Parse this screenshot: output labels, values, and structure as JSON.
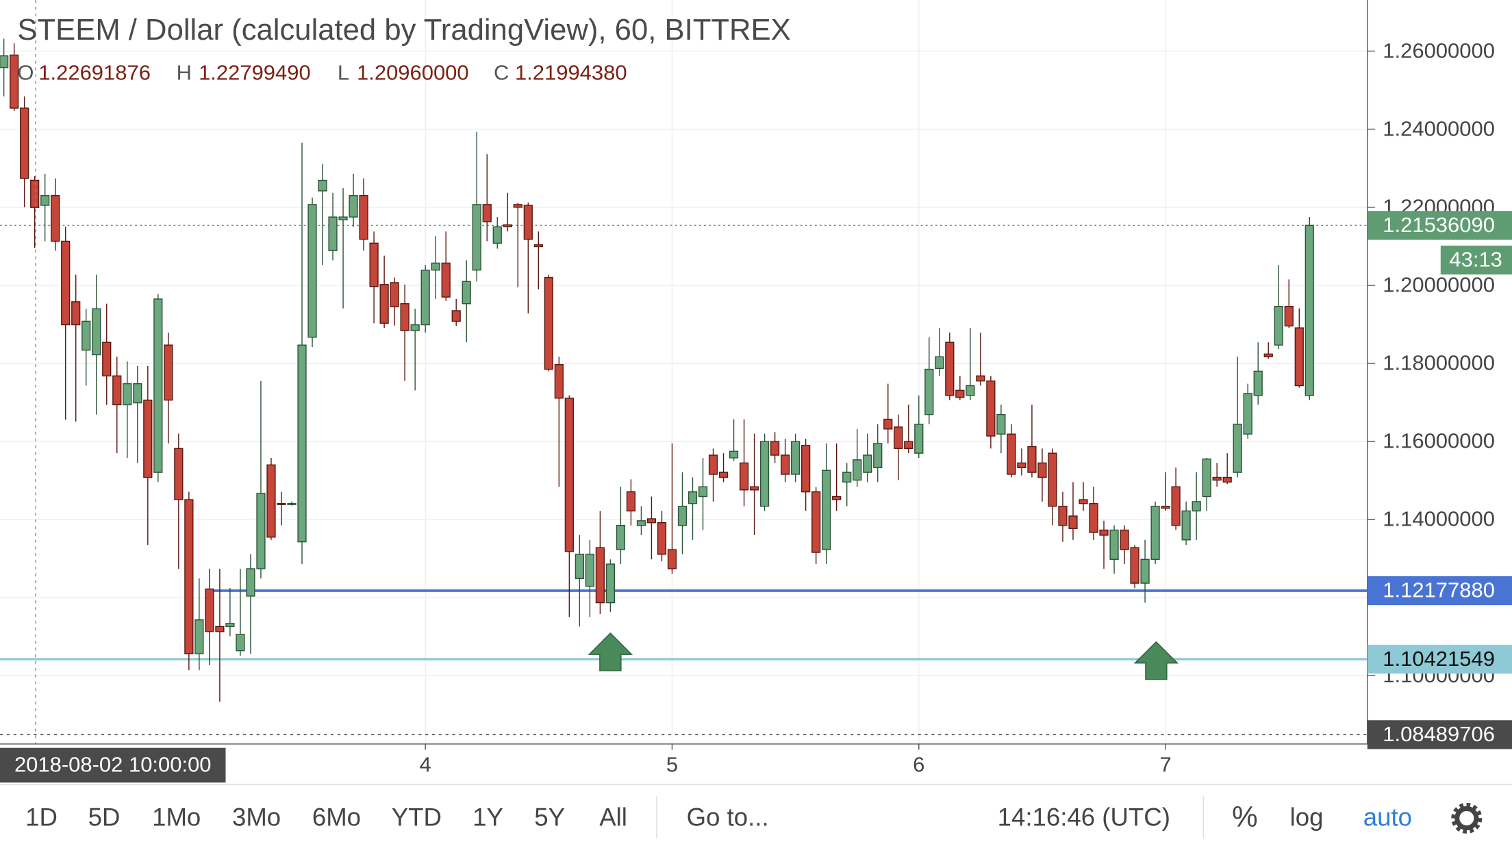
{
  "chart_data": {
    "type": "candlestick",
    "title": "STEEM / Dollar (calculated by TradingView), 60, BITTREX",
    "ohlc_legend": [
      {
        "name": "O",
        "label": "1.22691876"
      },
      {
        "name": "H",
        "label": "1.22799490"
      },
      {
        "name": "L",
        "label": "1.20960000"
      },
      {
        "name": "C",
        "label": "1.21994380"
      }
    ],
    "crosshair_label": "2018-08-02 10:00:00",
    "categories": [
      null,
      null,
      null,
      null,
      null,
      null,
      null,
      null,
      null,
      null,
      null,
      null,
      null,
      null,
      null,
      null,
      null,
      null,
      null,
      null,
      null,
      null,
      null,
      null,
      null,
      null,
      null,
      null,
      null,
      null,
      null,
      null,
      null,
      null,
      null,
      null,
      null,
      null,
      null,
      null,
      null,
      "4",
      null,
      null,
      null,
      null,
      null,
      null,
      null,
      null,
      null,
      null,
      null,
      null,
      null,
      null,
      null,
      null,
      null,
      null,
      null,
      null,
      null,
      null,
      null,
      "5",
      null,
      null,
      null,
      null,
      null,
      null,
      null,
      null,
      null,
      null,
      null,
      null,
      null,
      null,
      null,
      null,
      null,
      null,
      null,
      null,
      null,
      null,
      null,
      "6",
      null,
      null,
      null,
      null,
      null,
      null,
      null,
      null,
      null,
      null,
      null,
      null,
      null,
      null,
      null,
      null,
      null,
      null,
      null,
      null,
      null,
      null,
      null,
      "7",
      null,
      null,
      null,
      null,
      null,
      null,
      null,
      null,
      null,
      null,
      null,
      null,
      null,
      null
    ],
    "open": [
      1.2558,
      1.259,
      1.2454,
      1.22691876,
      1.2205,
      1.223,
      1.2113,
      1.1958,
      1.1834,
      1.1822,
      1.1854,
      1.1768,
      1.1694,
      1.1699,
      1.1706,
      1.1521,
      1.1847,
      1.1582,
      1.1451,
      1.1056,
      1.1222,
      1.1126,
      1.1126,
      1.1064,
      1.1204,
      1.1274,
      1.154,
      1.1441,
      1.1439,
      1.1343,
      1.1867,
      1.2242,
      1.2089,
      1.2168,
      1.2175,
      1.223,
      1.2108,
      1.2002,
      1.2007,
      1.1953,
      1.1884,
      1.1899,
      1.2039,
      1.2057,
      1.1935,
      1.1953,
      1.2039,
      1.2207,
      1.2108,
      1.2155,
      1.2207,
      1.2205,
      1.2104,
      1.202,
      1.1797,
      1.1711,
      1.1249,
      1.1229,
      1.1328,
      1.1187,
      1.1323,
      1.1471,
      1.1385,
      1.1402,
      1.1392,
      1.1323,
      1.1385,
      1.1441,
      1.1459,
      1.1565,
      1.1521,
      1.1558,
      1.1545,
      1.1484,
      1.1434,
      1.16,
      1.1565,
      1.1516,
      1.159,
      1.1471,
      1.1323,
      1.1459,
      1.1496,
      1.1501,
      1.1521,
      1.1533,
      1.1657,
      1.1637,
      1.16,
      1.157,
      1.1669,
      1.1787,
      1.1854,
      1.1731,
      1.1718,
      1.1768,
      1.1755,
      1.1619,
      1.1619,
      1.1545,
      1.1587,
      1.1545,
      1.157,
      1.1434,
      1.1409,
      1.1451,
      1.1441,
      1.1373,
      1.1298,
      1.1373,
      1.1328,
      1.1237,
      1.1298,
      1.1434,
      1.1484,
      1.1348,
      1.1422,
      1.1459,
      1.1508,
      1.1508,
      1.1521,
      1.1619,
      1.1718,
      1.1824,
      1.1847,
      1.1946,
      1.1891,
      1.1718
    ],
    "high": [
      1.2632,
      1.262,
      1.2484,
      1.2279949,
      1.2286,
      1.2274,
      1.215,
      1.2027,
      1.194,
      1.2027,
      1.1953,
      1.1817,
      1.1805,
      1.1793,
      1.1793,
      1.1978,
      1.1879,
      1.162,
      1.1471,
      1.1249,
      1.1274,
      1.1274,
      1.1225,
      1.1274,
      1.1311,
      1.1755,
      1.1558,
      1.1471,
      1.1446,
      1.2365,
      1.2225,
      1.2311,
      1.2237,
      1.2249,
      1.2286,
      1.2274,
      1.2138,
      1.2076,
      1.202,
      1.2002,
      1.194,
      1.2052,
      1.2126,
      1.2138,
      1.1965,
      1.2064,
      1.2393,
      1.2336,
      1.2175,
      1.2237,
      1.2212,
      1.2212,
      1.2138,
      1.2027,
      1.1817,
      1.1718,
      1.136,
      1.1348,
      1.1422,
      1.1298,
      1.1484,
      1.1503,
      1.1434,
      1.1459,
      1.1422,
      1.1595,
      1.1521,
      1.1508,
      1.1558,
      1.1582,
      1.157,
      1.1657,
      1.1657,
      1.162,
      1.162,
      1.1624,
      1.1607,
      1.162,
      1.1607,
      1.1483,
      1.1595,
      1.1595,
      1.1545,
      1.1632,
      1.162,
      1.1644,
      1.1748,
      1.1669,
      1.1694,
      1.1718,
      1.1867,
      1.1891,
      1.1879,
      1.1768,
      1.1891,
      1.1879,
      1.1768,
      1.1694,
      1.1644,
      1.1582,
      1.1694,
      1.1582,
      1.1582,
      1.1471,
      1.1496,
      1.1496,
      1.1484,
      1.1397,
      1.1385,
      1.1385,
      1.1335,
      1.1348,
      1.1446,
      1.1521,
      1.1533,
      1.1446,
      1.1521,
      1.1558,
      1.1545,
      1.157,
      1.1817,
      1.1748,
      1.1854,
      1.1854,
      1.2052,
      1.2015,
      1.1941,
      1.2175
    ],
    "low": [
      1.2484,
      1.2447,
      1.22,
      1.2096,
      1.2113,
      1.2089,
      1.1656,
      1.1651,
      1.1743,
      1.1669,
      1.1694,
      1.157,
      1.1558,
      1.1545,
      1.1335,
      1.1496,
      1.1595,
      1.1274,
      1.1014,
      1.1014,
      1.1027,
      1.0933,
      1.1101,
      1.1051,
      1.1056,
      1.1249,
      1.1348,
      1.1385,
      1.1436,
      1.1286,
      1.1842,
      1.2052,
      1.2064,
      1.1941,
      1.215,
      1.2089,
      1.1903,
      1.1891,
      1.1897,
      1.1755,
      1.1731,
      1.1879,
      1.1965,
      1.196,
      1.1896,
      1.1854,
      1.201,
      1.2113,
      1.2094,
      1.2138,
      1.1995,
      1.1928,
      1.199,
      1.178,
      1.1484,
      1.115,
      1.1126,
      1.115,
      1.1158,
      1.1163,
      1.1286,
      1.1385,
      1.136,
      1.1298,
      1.1293,
      1.1261,
      1.1311,
      1.1348,
      1.1373,
      1.1446,
      1.1496,
      1.155,
      1.1434,
      1.136,
      1.1422,
      1.1545,
      1.1496,
      1.1496,
      1.1422,
      1.1286,
      1.1286,
      1.1422,
      1.1434,
      1.1484,
      1.1496,
      1.1496,
      1.1595,
      1.1501,
      1.157,
      1.1558,
      1.1644,
      1.1768,
      1.1706,
      1.1706,
      1.1706,
      1.1743,
      1.1582,
      1.157,
      1.1508,
      1.1513,
      1.1508,
      1.1446,
      1.1385,
      1.1343,
      1.1348,
      1.1422,
      1.1348,
      1.1274,
      1.1261,
      1.1286,
      1.1224,
      1.1187,
      1.1286,
      1.1422,
      1.1373,
      1.1335,
      1.1348,
      1.1422,
      1.1484,
      1.1491,
      1.1508,
      1.1607,
      1.1694,
      1.1812,
      1.1837,
      1.1891,
      1.1738,
      1.1706
    ],
    "close": [
      1.2588,
      1.2454,
      1.2274,
      1.2199438,
      1.223,
      1.2113,
      1.1899,
      1.1899,
      1.1908,
      1.194,
      1.1768,
      1.1694,
      1.1748,
      1.1748,
      1.1508,
      1.1965,
      1.1706,
      1.1451,
      1.1056,
      1.1143,
      1.1113,
      1.1113,
      1.1134,
      1.1106,
      1.1274,
      1.1467,
      1.1355,
      1.1439,
      1.1441,
      1.1847,
      1.2207,
      1.2269,
      1.2175,
      1.2175,
      1.223,
      1.2118,
      1.1997,
      1.1903,
      1.1945,
      1.1884,
      1.1899,
      1.2039,
      1.2057,
      1.197,
      1.1908,
      1.201,
      1.2207,
      1.2163,
      1.215,
      1.215,
      1.22,
      1.2118,
      1.2099,
      1.1785,
      1.1711,
      1.1318,
      1.1311,
      1.1311,
      1.1187,
      1.1286,
      1.1385,
      1.1422,
      1.1397,
      1.1392,
      1.1311,
      1.1274,
      1.1434,
      1.1471,
      1.1484,
      1.1516,
      1.1508,
      1.1575,
      1.1476,
      1.1476,
      1.16,
      1.1565,
      1.1516,
      1.16,
      1.1471,
      1.1316,
      1.1526,
      1.1451,
      1.1521,
      1.1553,
      1.1565,
      1.1595,
      1.1632,
      1.1582,
      1.1582,
      1.1644,
      1.1785,
      1.1817,
      1.1718,
      1.1713,
      1.1743,
      1.1755,
      1.1614,
      1.1669,
      1.1516,
      1.1533,
      1.1521,
      1.1508,
      1.1434,
      1.1385,
      1.1377,
      1.1441,
      1.1367,
      1.136,
      1.1373,
      1.1323,
      1.1237,
      1.1298,
      1.1434,
      1.1429,
      1.1385,
      1.1422,
      1.1446,
      1.1555,
      1.1501,
      1.1496,
      1.1644,
      1.1723,
      1.178,
      1.1817,
      1.1946,
      1.1896,
      1.1743,
      1.2153609
    ],
    "up_color": "#6ca77e",
    "down_color": "#c5463a",
    "ylim": [
      1.0825,
      1.2731
    ],
    "yticks": [
      {
        "value": 1.1,
        "label": "1.10000000"
      },
      {
        "value": 1.12,
        "label": "1.12000000"
      },
      {
        "value": 1.14,
        "label": "1.14000000"
      },
      {
        "value": 1.16,
        "label": "1.16000000"
      },
      {
        "value": 1.18,
        "label": "1.18000000"
      },
      {
        "value": 1.2,
        "label": "1.20000000"
      },
      {
        "value": 1.22,
        "label": "1.22000000"
      },
      {
        "value": 1.24,
        "label": "1.24000000"
      },
      {
        "value": 1.26,
        "label": "1.26000000"
      }
    ],
    "grid": true,
    "price_lines": [
      {
        "value": 1.2153609,
        "label": "1.21536090",
        "color": "#5f9c72",
        "countdown": "43:13"
      },
      {
        "value": 1.1217788,
        "label": "1.12177880",
        "color": "#4a74d3"
      },
      {
        "value": 1.10421549,
        "label": "1.10421549",
        "color": "#8ecad6"
      },
      {
        "value": 1.08489706,
        "label": "1.08489706",
        "color": "#4a4a4a"
      }
    ]
  },
  "toolbar": {
    "ranges": [
      "1D",
      "5D",
      "1Mo",
      "3Mo",
      "6Mo",
      "YTD",
      "1Y",
      "5Y",
      "All"
    ],
    "goto": "Go to...",
    "clock": "14:16:46 (UTC)",
    "percent": "%",
    "log": "log",
    "auto": "auto"
  }
}
